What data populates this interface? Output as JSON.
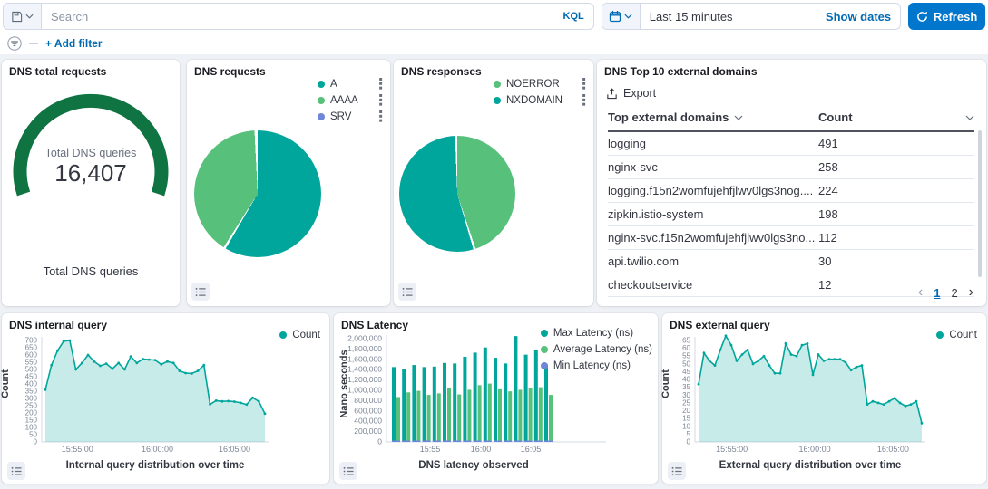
{
  "topbar": {
    "search": {
      "placeholder": "Search",
      "language_label": "KQL"
    },
    "time_picker": {
      "value": "Last 15 minutes",
      "show_dates_label": "Show dates"
    },
    "refresh_label": "Refresh"
  },
  "filter_bar": {
    "add_filter_label": "+ Add filter"
  },
  "colors": {
    "teal": "#00a69b",
    "green": "#57c17b",
    "blue": "#6f87d8",
    "gauge_green": "#0f7342",
    "accent_blue": "#006bb4",
    "button_blue": "#0077cc",
    "area_fill": "rgba(0,166,155,0.22)"
  },
  "chart_data": [
    {
      "id": "gauge",
      "type": "gauge",
      "title": "DNS total requests",
      "label": "Total DNS queries",
      "value": 16407,
      "value_display": "16,407",
      "bottom_label": "Total DNS queries"
    },
    {
      "id": "requests",
      "type": "pie",
      "title": "DNS requests",
      "slices": [
        {
          "label": "A",
          "pct": 59.0,
          "color_key": "teal"
        },
        {
          "label": "AAAA",
          "pct": 40.8,
          "color_key": "green"
        },
        {
          "label": "SRV",
          "pct": 0.2,
          "color_key": "blue"
        }
      ]
    },
    {
      "id": "responses",
      "type": "pie",
      "title": "DNS responses",
      "slices": [
        {
          "label": "NOERROR",
          "pct": 45.5,
          "color_key": "green"
        },
        {
          "label": "NXDOMAIN",
          "pct": 54.5,
          "color_key": "teal"
        }
      ]
    },
    {
      "id": "domains",
      "type": "table",
      "title": "DNS Top 10 external domains",
      "export_label": "Export",
      "columns": [
        "Top external domains",
        "Count"
      ],
      "rows": [
        [
          "logging",
          "491"
        ],
        [
          "nginx-svc",
          "258"
        ],
        [
          "logging.f15n2womfujehfjlwv0lgs3nog....",
          "224"
        ],
        [
          "zipkin.istio-system",
          "198"
        ],
        [
          "nginx-svc.f15n2womfujehfjlwv0lgs3no...",
          "112"
        ],
        [
          "api.twilio.com",
          "30"
        ],
        [
          "checkoutservice",
          "12"
        ]
      ],
      "pagination": {
        "pages": [
          "1",
          "2"
        ],
        "active": "1"
      }
    },
    {
      "id": "internal",
      "type": "area",
      "title": "DNS internal query",
      "ylabel": "Count",
      "xlabel": "Internal query distribution over time",
      "ylim": [
        0,
        700
      ],
      "y_tick_step": 50,
      "x_ticks": [
        "15:55:00",
        "16:00:00",
        "16:05:00"
      ],
      "series": [
        {
          "name": "Count",
          "values": [
            360,
            530,
            630,
            695,
            700,
            500,
            545,
            600,
            555,
            525,
            540,
            505,
            545,
            500,
            590,
            545,
            572,
            568,
            565,
            535,
            555,
            545,
            490,
            475,
            472,
            490,
            530,
            260,
            285,
            280,
            282,
            278,
            270,
            258,
            305,
            280,
            195
          ]
        }
      ]
    },
    {
      "id": "latency",
      "type": "bar",
      "title": "DNS Latency",
      "ylabel": "Nano seconds",
      "xlabel": "DNS latency observed",
      "ylim": [
        0,
        2000000
      ],
      "y_tick_step": 200000,
      "x_ticks": [
        "15:55",
        "16:00",
        "16:05"
      ],
      "series": [
        {
          "name": "Max Latency (ns)",
          "color_key": "teal",
          "values": [
            1450000,
            1420000,
            1490000,
            1450000,
            1460000,
            1530000,
            1520000,
            1650000,
            1730000,
            1830000,
            1630000,
            1520000,
            2050000,
            1690000,
            1790000,
            1500000
          ]
        },
        {
          "name": "Average Latency (ns)",
          "color_key": "green",
          "values": [
            870000,
            960000,
            990000,
            910000,
            940000,
            1040000,
            920000,
            1010000,
            1100000,
            1130000,
            1020000,
            980000,
            1010000,
            1050000,
            1060000,
            910000
          ]
        },
        {
          "name": "Min Latency (ns)",
          "color_key": "blue",
          "values": [
            20000,
            20000,
            20000,
            20000,
            20000,
            20000,
            20000,
            20000,
            20000,
            20000,
            20000,
            20000,
            20000,
            20000,
            20000,
            20000
          ]
        }
      ]
    },
    {
      "id": "external",
      "type": "area",
      "title": "DNS external query",
      "ylabel": "Count",
      "xlabel": "External query distribution over time",
      "ylim": [
        0,
        65
      ],
      "y_tick_step": 5,
      "x_ticks": [
        "15:55:00",
        "16:00:00",
        "16:05:00"
      ],
      "series": [
        {
          "name": "Count",
          "values": [
            37,
            57,
            52,
            49,
            59,
            68,
            62,
            52,
            56,
            59,
            50,
            52,
            55,
            49,
            44,
            44,
            63,
            56,
            55,
            62,
            63,
            43,
            56,
            52,
            53,
            53,
            53,
            51,
            46,
            48,
            49,
            24,
            26,
            25,
            24,
            26,
            28,
            25,
            23,
            24,
            26,
            12
          ]
        }
      ]
    }
  ]
}
